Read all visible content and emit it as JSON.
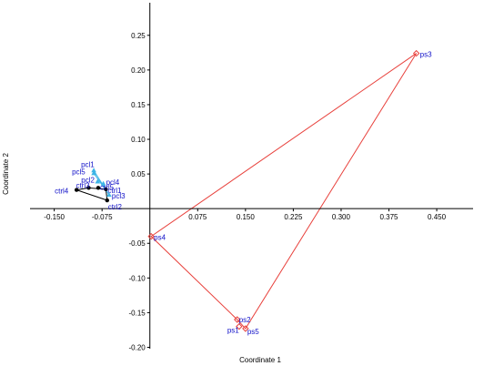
{
  "chart_data": {
    "type": "scatter",
    "xlabel": "Coordinate 1",
    "ylabel": "Coordinate 2",
    "xlim": [
      -0.188,
      0.507
    ],
    "ylim": [
      -0.202,
      0.297
    ],
    "xticks": [
      -0.15,
      -0.075,
      0.075,
      0.15,
      0.225,
      0.3,
      0.375,
      0.45
    ],
    "xtick_labels": [
      "-0.150",
      "-0.075",
      "0.075",
      "0.150",
      "0.225",
      "0.300",
      "0.375",
      "0.450"
    ],
    "yticks": [
      0.25,
      0.2,
      0.15,
      0.1,
      0.05,
      -0.05,
      -0.1,
      -0.15,
      -0.2
    ],
    "ytick_labels": [
      "0.25",
      "0.20",
      "0.15",
      "0.10",
      "0.05",
      "-0.05",
      "-0.10",
      "-0.15",
      "-0.20"
    ],
    "grid": false,
    "series": [
      {
        "color": "#000000",
        "marker": "dot",
        "hull": [
          "ctrl4",
          "ctrl3",
          "ctrl1",
          "ctrl2"
        ],
        "points": [
          {
            "label": "ctrl1",
            "x": -0.069,
            "y": 0.028
          },
          {
            "label": "ctrl2",
            "x": -0.067,
            "y": 0.012
          },
          {
            "label": "ctrl3",
            "x": -0.096,
            "y": 0.03
          },
          {
            "label": "ctrl4",
            "x": -0.115,
            "y": 0.027
          },
          {
            "label": "ctrl5",
            "x": -0.081,
            "y": 0.03
          }
        ]
      },
      {
        "color": "#3db4e6",
        "marker": "triangle",
        "hull": [
          "pcl1",
          "pcl3",
          "pcl5"
        ],
        "points": [
          {
            "label": "pcl1",
            "x": -0.088,
            "y": 0.055
          },
          {
            "label": "pcl2",
            "x": -0.082,
            "y": 0.039
          },
          {
            "label": "pcl3",
            "x": -0.064,
            "y": 0.02
          },
          {
            "label": "pcl4",
            "x": -0.073,
            "y": 0.036
          },
          {
            "label": "pcl5",
            "x": -0.088,
            "y": 0.051
          }
        ]
      },
      {
        "color": "#e8413c",
        "marker": "diamond",
        "hull": [
          "ps3",
          "ps4",
          "ps2",
          "ps5"
        ],
        "points": [
          {
            "label": "ps1",
            "x": 0.14,
            "y": -0.17
          },
          {
            "label": "ps2",
            "x": 0.137,
            "y": -0.16
          },
          {
            "label": "ps3",
            "x": 0.418,
            "y": 0.224
          },
          {
            "label": "ps4",
            "x": 0.002,
            "y": -0.04
          },
          {
            "label": "ps5",
            "x": 0.15,
            "y": -0.173
          }
        ]
      }
    ],
    "label_color": "#1010c8",
    "label_offsets": {
      "ctrl1": [
        2,
        4
      ],
      "ctrl2": [
        1,
        10
      ],
      "ctrl3": [
        -14,
        0
      ],
      "ctrl4": [
        -24,
        4
      ],
      "ctrl5": [
        2,
        2
      ],
      "pcl1": [
        -14,
        -4
      ],
      "pcl2": [
        -18,
        1
      ],
      "pcl3": [
        3,
        4
      ],
      "pcl4": [
        3,
        1
      ],
      "pcl5": [
        -24,
        1
      ],
      "ps1": [
        -13,
        7
      ],
      "ps2": [
        2,
        3
      ],
      "ps3": [
        4,
        4
      ],
      "ps4": [
        3,
        4
      ],
      "ps5": [
        2,
        6
      ]
    }
  }
}
